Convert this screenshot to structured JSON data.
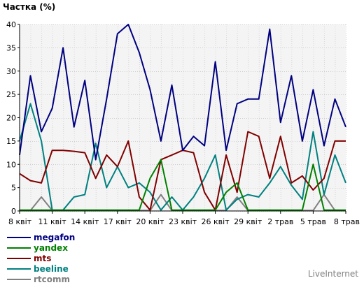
{
  "chart_data": {
    "type": "line",
    "title": "Частка (%)",
    "ylim": [
      0,
      40
    ],
    "y_ticks": [
      0,
      5,
      10,
      15,
      20,
      25,
      30,
      35,
      40
    ],
    "x_tick_labels": [
      "8 квіт",
      "11 квіт",
      "14 квіт",
      "17 квіт",
      "20 квіт",
      "23 квіт",
      "26 квіт",
      "29 квіт",
      "2 трав",
      "5 трав",
      "8 трав"
    ],
    "grid": true,
    "legend_position": "bottom-left",
    "series": [
      {
        "name": "megafon",
        "color": "#000080",
        "values": [
          12,
          29,
          17,
          22,
          35,
          18,
          28,
          11,
          24,
          38,
          40,
          34,
          26,
          15,
          27,
          13,
          16,
          14,
          32,
          13,
          23,
          24,
          24,
          39,
          19,
          29,
          15,
          26,
          14,
          24,
          18
        ]
      },
      {
        "name": "yandex",
        "color": "#008000",
        "values": [
          0.2,
          0.2,
          0.2,
          0.2,
          0.2,
          0.2,
          0.2,
          0.2,
          0.2,
          0.2,
          0.2,
          0.2,
          7,
          11,
          0.2,
          0.2,
          0.2,
          0.2,
          0.2,
          4,
          6,
          0.2,
          0.2,
          0.2,
          0.2,
          0.2,
          0.2,
          10,
          0.2,
          0.2,
          0.2
        ]
      },
      {
        "name": "mts",
        "color": "#800000",
        "values": [
          8,
          6.5,
          6,
          13,
          13,
          12.8,
          12.5,
          7,
          12,
          9.5,
          15,
          3,
          0.2,
          11,
          12,
          13,
          12.5,
          4,
          0.2,
          12,
          4,
          17,
          16,
          7,
          16,
          6,
          7.5,
          4.5,
          7,
          15,
          15
        ]
      },
      {
        "name": "beeline",
        "color": "#008080",
        "values": [
          15,
          23,
          15,
          0.2,
          0.2,
          3,
          3.5,
          14.5,
          5,
          9.5,
          5,
          6,
          4,
          0.2,
          3,
          0.2,
          3,
          7,
          12,
          0.2,
          2.5,
          3.5,
          3,
          6,
          9.5,
          5.5,
          2.5,
          17,
          3.5,
          12,
          6
        ]
      },
      {
        "name": "rtcomm",
        "color": "#808080",
        "values": [
          0.1,
          0.1,
          3,
          0.1,
          0.1,
          0.1,
          0.1,
          0.1,
          0.1,
          0.1,
          0.1,
          0.1,
          0.1,
          3.5,
          0.1,
          0.1,
          0.1,
          0.1,
          0.1,
          0.1,
          3,
          0.1,
          0.1,
          0.1,
          0.1,
          0.1,
          0.1,
          0.1,
          3.5,
          0.1,
          0.1
        ]
      }
    ]
  },
  "brand": "LiveInternet"
}
